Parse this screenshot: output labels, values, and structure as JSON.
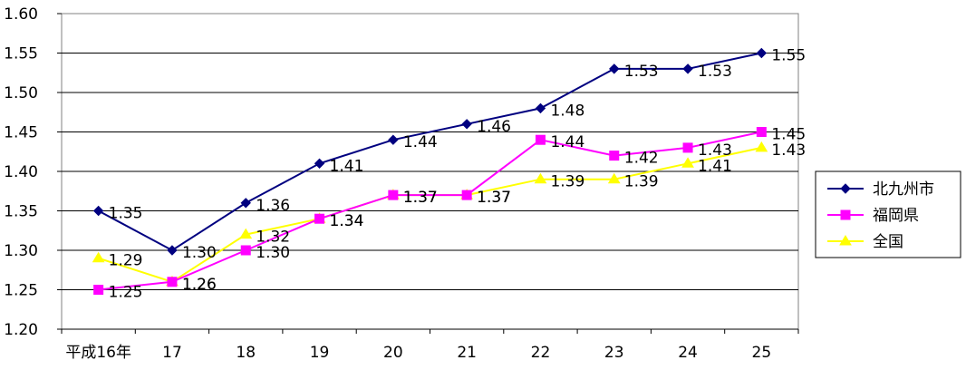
{
  "chart_data": {
    "type": "line",
    "categories": [
      "平成16年",
      "17",
      "18",
      "19",
      "20",
      "21",
      "22",
      "23",
      "24",
      "25"
    ],
    "series": [
      {
        "name": "北九州市",
        "color": "#000080",
        "marker": "diamond",
        "values": [
          1.35,
          1.3,
          1.36,
          1.41,
          1.44,
          1.46,
          1.48,
          1.53,
          1.53,
          1.55
        ],
        "labels": [
          "1.35",
          "1.30",
          "1.36",
          "1.41",
          "1.44",
          "1.46",
          "1.48",
          "1.53",
          "1.53",
          "1.55"
        ]
      },
      {
        "name": "福岡県",
        "color": "#ff00ff",
        "marker": "square",
        "values": [
          1.25,
          1.26,
          1.3,
          1.34,
          1.37,
          1.37,
          1.44,
          1.42,
          1.43,
          1.45
        ],
        "labels": [
          "1.25",
          "1.26",
          "1.30",
          "1.34",
          "1.37",
          "1.37",
          "1.44",
          "1.42",
          "1.43",
          "1.45"
        ]
      },
      {
        "name": "全国",
        "color": "#ffff00",
        "marker": "triangle",
        "values": [
          1.29,
          1.26,
          1.32,
          1.34,
          1.37,
          1.37,
          1.39,
          1.39,
          1.41,
          1.43
        ],
        "labels": [
          "1.29",
          "1.26",
          "1.32",
          "1.34",
          "1.37",
          "1.37",
          "1.39",
          "1.39",
          "1.41",
          "1.43"
        ]
      }
    ],
    "ylim": [
      1.2,
      1.6
    ],
    "yticks": [
      "1.20",
      "1.25",
      "1.30",
      "1.35",
      "1.40",
      "1.45",
      "1.50",
      "1.55",
      "1.60"
    ],
    "grid": true,
    "legend": "right"
  }
}
